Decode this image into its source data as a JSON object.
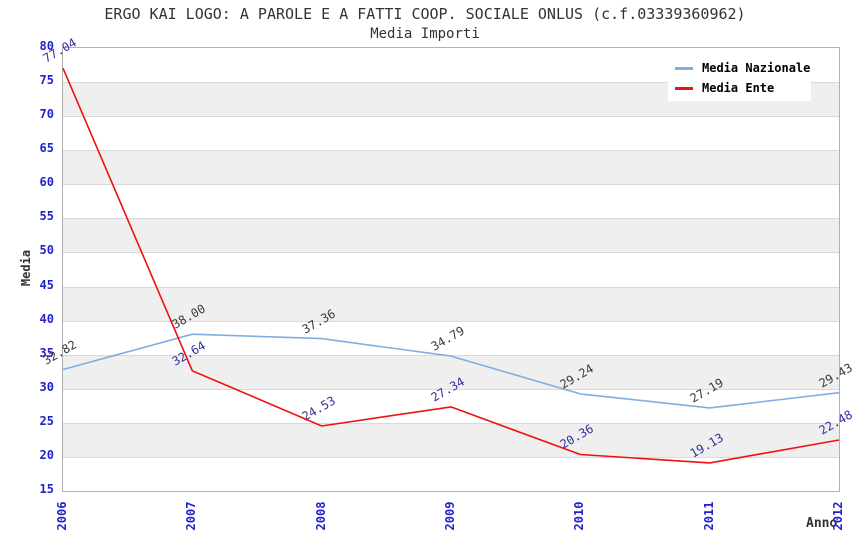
{
  "header": {
    "title": "ERGO KAI LOGO: A PAROLE E A FATTI COOP. SOCIALE ONLUS (c.f.03339360962)",
    "subtitle": "Media Importi"
  },
  "chart_data": {
    "type": "line",
    "x": [
      "2006",
      "2007",
      "2008",
      "2009",
      "2010",
      "2011",
      "2012"
    ],
    "series": [
      {
        "name": "Media Nazionale",
        "color": "#7fafe0",
        "label_color": "#3a3a3a",
        "values": [
          32.82,
          38.0,
          37.36,
          34.79,
          29.24,
          27.19,
          29.43
        ]
      },
      {
        "name": "Media Ente",
        "color": "#ee1111",
        "label_color": "#31319b",
        "values": [
          77.04,
          32.64,
          24.53,
          27.34,
          20.36,
          19.13,
          22.48
        ]
      }
    ],
    "xlabel": "Anno",
    "ylabel": "Media",
    "ylim": [
      15,
      80
    ],
    "ytick_step": 5,
    "grid": true,
    "banded_background": true,
    "legend_position": "top-right",
    "data_labels": true
  },
  "colors": {
    "title_text": "#333333",
    "tick_text": "#2222cc",
    "band": "#efefef",
    "grid": "#d9d9d9",
    "axis_border": "#b0b0b0"
  }
}
